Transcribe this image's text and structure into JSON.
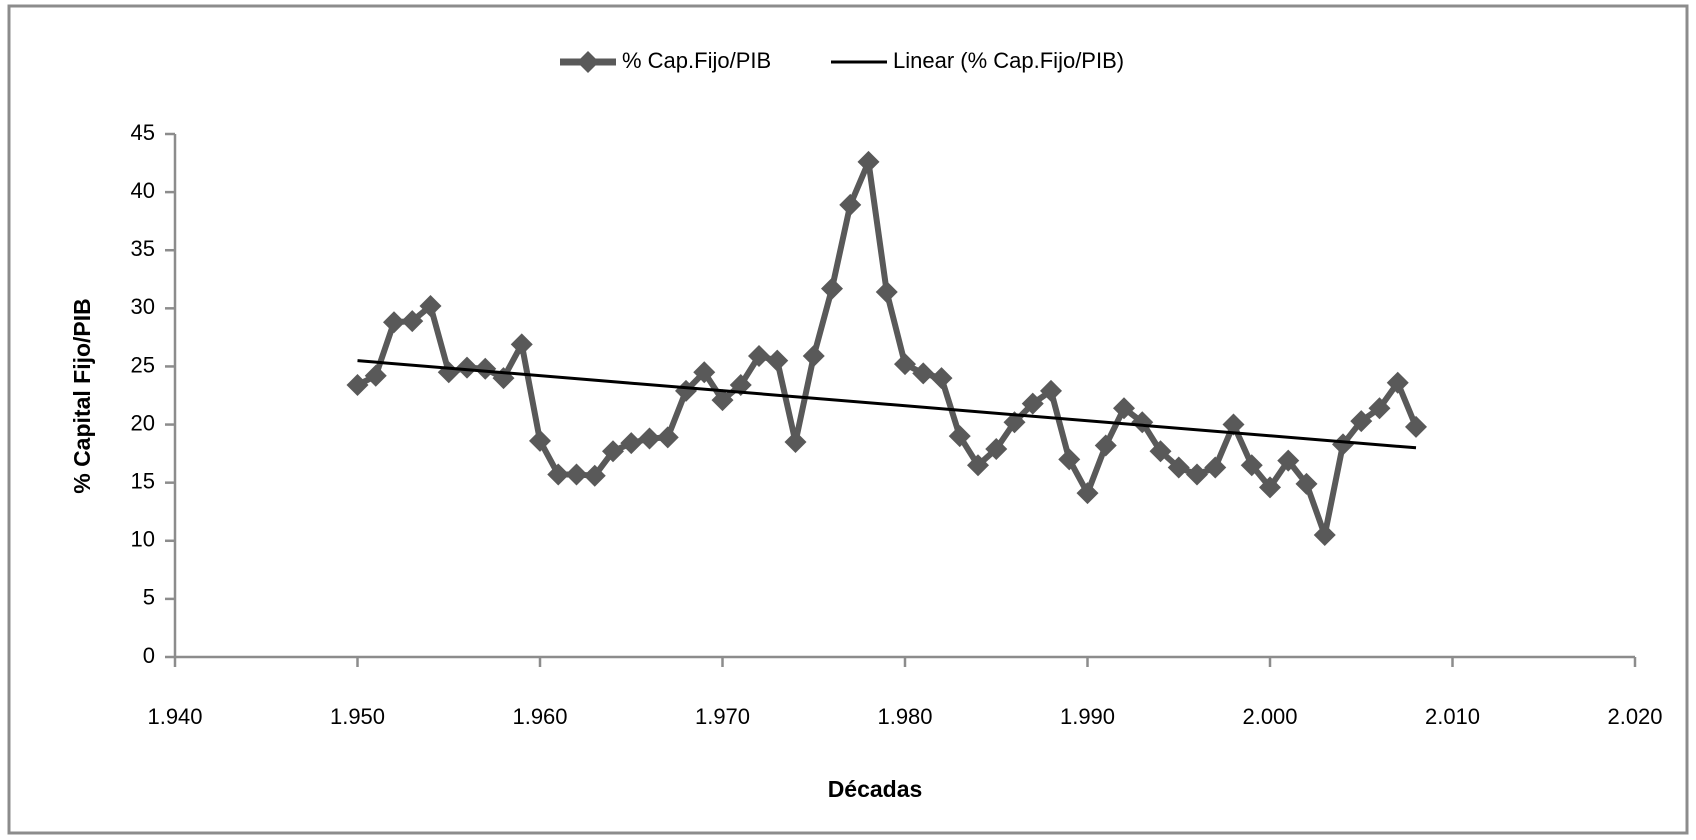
{
  "chart_data": {
    "type": "line",
    "xlabel": "Décadas",
    "ylabel": "% Capital  Fijo/PIB",
    "xlim": [
      1940,
      2020
    ],
    "xticks": [
      {
        "value": 1940,
        "label": "1.940"
      },
      {
        "value": 1950,
        "label": "1.950"
      },
      {
        "value": 1960,
        "label": "1.960"
      },
      {
        "value": 1970,
        "label": "1.970"
      },
      {
        "value": 1980,
        "label": "1.980"
      },
      {
        "value": 1990,
        "label": "1.990"
      },
      {
        "value": 2000,
        "label": "2.000"
      },
      {
        "value": 2010,
        "label": "2.010"
      },
      {
        "value": 2020,
        "label": "2.020"
      }
    ],
    "ylim": [
      0,
      45
    ],
    "yticks": [
      0,
      5,
      10,
      15,
      20,
      25,
      30,
      35,
      40,
      45
    ],
    "legend": "top",
    "series": [
      {
        "name": "% Cap.Fijo/PIB",
        "color": "#595959",
        "marker": "diamond",
        "x": [
          1950,
          1951,
          1952,
          1953,
          1954,
          1955,
          1956,
          1957,
          1958,
          1959,
          1960,
          1961,
          1962,
          1963,
          1964,
          1965,
          1966,
          1967,
          1968,
          1969,
          1970,
          1971,
          1972,
          1973,
          1974,
          1975,
          1976,
          1977,
          1978,
          1979,
          1980,
          1981,
          1982,
          1983,
          1984,
          1985,
          1986,
          1987,
          1988,
          1989,
          1990,
          1991,
          1992,
          1993,
          1994,
          1995,
          1996,
          1997,
          1998,
          1999,
          2000,
          2001,
          2002,
          2003,
          2004,
          2005,
          2006,
          2007,
          2008
        ],
        "values": [
          23.4,
          24.2,
          28.8,
          28.9,
          30.2,
          24.5,
          24.9,
          24.8,
          24.0,
          26.9,
          18.6,
          15.7,
          15.7,
          15.6,
          17.7,
          18.4,
          18.8,
          18.9,
          22.9,
          24.5,
          22.1,
          23.4,
          25.9,
          25.5,
          18.5,
          25.9,
          31.7,
          38.9,
          42.6,
          31.4,
          25.2,
          24.4,
          24.0,
          19.0,
          16.5,
          17.9,
          20.2,
          21.8,
          22.9,
          17.0,
          14.1,
          18.2,
          21.4,
          20.2,
          17.7,
          16.3,
          15.7,
          16.3,
          20.0,
          16.5,
          14.6,
          16.9,
          14.9,
          10.5,
          18.3,
          20.3,
          21.4,
          23.6,
          19.8
        ]
      },
      {
        "name": "Linear  (% Cap.Fijo/PIB)",
        "color": "#000000",
        "marker": "none",
        "x": [
          1950,
          2008
        ],
        "values": [
          25.5,
          18.0
        ]
      }
    ]
  }
}
